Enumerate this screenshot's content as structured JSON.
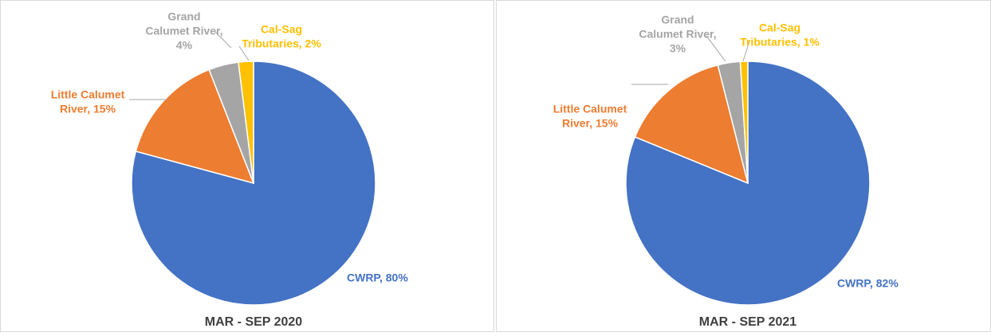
{
  "chart_data": [
    {
      "type": "pie",
      "title": "MAR - SEP 2020",
      "values": [
        80,
        15,
        4,
        2
      ],
      "value_labels": [
        [
          "CWRP, 80%"
        ],
        [
          "Little Calumet",
          "River, 15%"
        ],
        [
          "Grand",
          "Calumet River,",
          "4%"
        ],
        [
          "Cal-Sag",
          "Tributaries, 2%"
        ]
      ],
      "colors": [
        "#4472c4",
        "#ed7d31",
        "#a5a5a5",
        "#ffc000"
      ]
    },
    {
      "type": "pie",
      "title": "MAR - SEP 2021",
      "values": [
        82,
        15,
        3,
        1
      ],
      "value_labels": [
        [
          "CWRP, 82%"
        ],
        [
          "Little Calumet",
          "River, 15%"
        ],
        [
          "Grand",
          "Calumet River,",
          "3%"
        ],
        [
          "Cal-Sag",
          "Tributaries, 1%"
        ]
      ],
      "colors": [
        "#4472c4",
        "#ed7d31",
        "#a5a5a5",
        "#ffc000"
      ]
    }
  ]
}
